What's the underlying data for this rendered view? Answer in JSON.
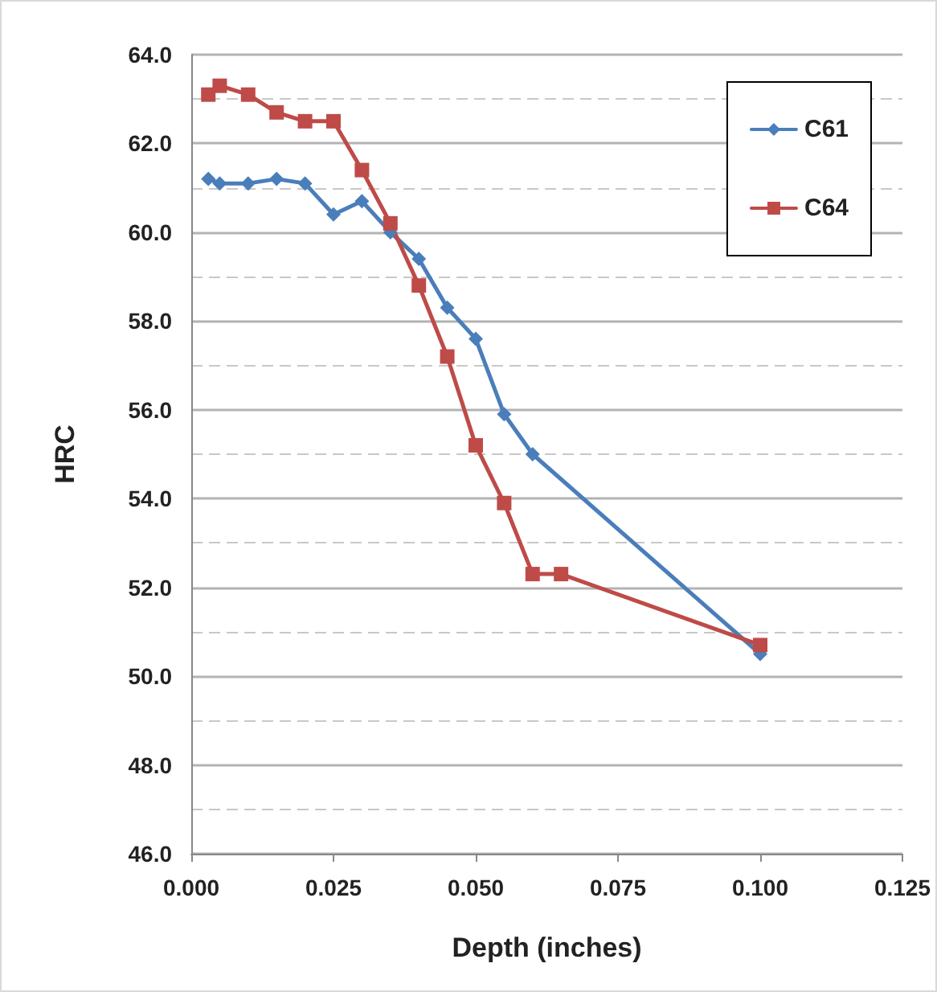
{
  "chart_data": {
    "type": "line",
    "xlabel": "Depth (inches)",
    "ylabel": "HRC",
    "series": [
      {
        "name": "C61",
        "color": "#4a7ebb",
        "marker": "diamond",
        "x": [
          0.003,
          0.005,
          0.01,
          0.015,
          0.02,
          0.025,
          0.03,
          0.035,
          0.04,
          0.045,
          0.05,
          0.055,
          0.06,
          0.1
        ],
        "values": [
          61.2,
          61.1,
          61.1,
          61.2,
          61.1,
          60.4,
          60.7,
          60.0,
          59.4,
          58.3,
          57.6,
          55.9,
          55.0,
          50.5
        ]
      },
      {
        "name": "C64",
        "color": "#be4b48",
        "marker": "square",
        "x": [
          0.003,
          0.005,
          0.01,
          0.015,
          0.02,
          0.025,
          0.03,
          0.035,
          0.04,
          0.045,
          0.05,
          0.055,
          0.06,
          0.065,
          0.1
        ],
        "values": [
          63.1,
          63.3,
          63.1,
          62.7,
          62.5,
          62.5,
          61.4,
          60.2,
          58.8,
          57.2,
          55.2,
          53.9,
          52.3,
          52.3,
          50.7
        ]
      }
    ],
    "xlim": [
      0,
      0.125
    ],
    "xticks": [
      {
        "value": 0,
        "label": "0.000"
      },
      {
        "value": 0.025,
        "label": "0.025"
      },
      {
        "value": 0.05,
        "label": "0.050"
      },
      {
        "value": 0.075,
        "label": "0.075"
      },
      {
        "value": 0.1,
        "label": "0.100"
      },
      {
        "value": 0.125,
        "label": "0.125"
      }
    ],
    "ylim": [
      46,
      64
    ],
    "yticks": [
      {
        "value": 46,
        "label": "46.0"
      },
      {
        "value": 47,
        "label": null
      },
      {
        "value": 48,
        "label": "48.0"
      },
      {
        "value": 49,
        "label": null
      },
      {
        "value": 50,
        "label": "50.0"
      },
      {
        "value": 51,
        "label": null
      },
      {
        "value": 52,
        "label": "52.0"
      },
      {
        "value": 53,
        "label": null
      },
      {
        "value": 54,
        "label": "54.0"
      },
      {
        "value": 55,
        "label": null
      },
      {
        "value": 56,
        "label": "56.0"
      },
      {
        "value": 57,
        "label": null
      },
      {
        "value": 58,
        "label": "58.0"
      },
      {
        "value": 59,
        "label": null
      },
      {
        "value": 60,
        "label": "60.0"
      },
      {
        "value": 61,
        "label": null
      },
      {
        "value": 62,
        "label": "62.0"
      },
      {
        "value": 63,
        "label": null
      },
      {
        "value": 64,
        "label": "64.0"
      }
    ],
    "grid": "y",
    "legend": "top right",
    "line_style": "solid"
  }
}
